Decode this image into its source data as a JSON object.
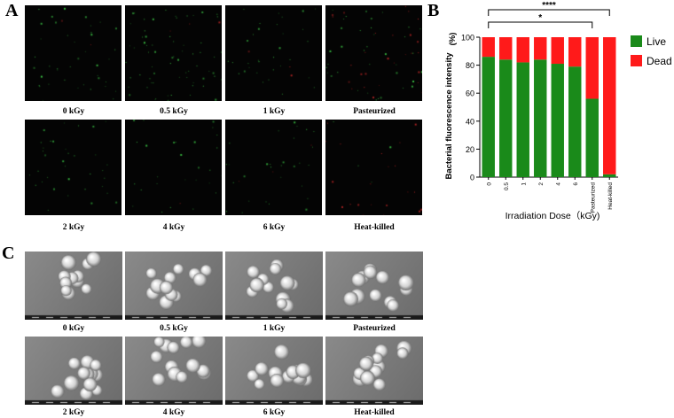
{
  "panels": {
    "a": "A",
    "b": "B",
    "c": "C"
  },
  "fluorescence": {
    "labels": [
      "0 kGy",
      "0.5 kGy",
      "1 kGy",
      "Pasteurized",
      "2 kGy",
      "4 kGy",
      "6 kGy",
      "Heat-killed"
    ],
    "density": [
      0.6,
      1.0,
      0.5,
      0.9,
      0.5,
      0.4,
      0.45,
      0.35
    ],
    "red_fraction": [
      0.03,
      0.05,
      0.08,
      0.45,
      0.05,
      0.06,
      0.1,
      0.85
    ]
  },
  "sem": {
    "labels": [
      "0 kGy",
      "0.5 kGy",
      "1 kGy",
      "Pasteurized",
      "2 kGy",
      "4 kGy",
      "6 kGy",
      "Heat-killed"
    ]
  },
  "chart_data": {
    "type": "bar",
    "stacked": true,
    "categories": [
      "0",
      "0.5",
      "1",
      "2",
      "4",
      "6",
      "Pasteurized",
      "Heat-killed"
    ],
    "series": [
      {
        "name": "Live",
        "color": "#1a8a1a",
        "values": [
          86,
          84,
          82,
          84,
          81,
          79,
          56,
          2
        ]
      },
      {
        "name": "Dead",
        "color": "#ff1a1a",
        "values": [
          14,
          16,
          18,
          16,
          19,
          21,
          44,
          98
        ]
      }
    ],
    "ylim": [
      0,
      100
    ],
    "yticks": [
      "0",
      "20",
      "40",
      "60",
      "80",
      "100"
    ],
    "ylabel": "Bacterial fluorescence intensity",
    "ylabel_unit": "(%)",
    "xlabel": "Irradiation Dose（kGy)",
    "legend_position": "right",
    "significance": [
      {
        "from": "0",
        "to": "Pasteurized",
        "label": "*"
      },
      {
        "from": "0",
        "to": "Heat-killed",
        "label": "****"
      }
    ]
  }
}
